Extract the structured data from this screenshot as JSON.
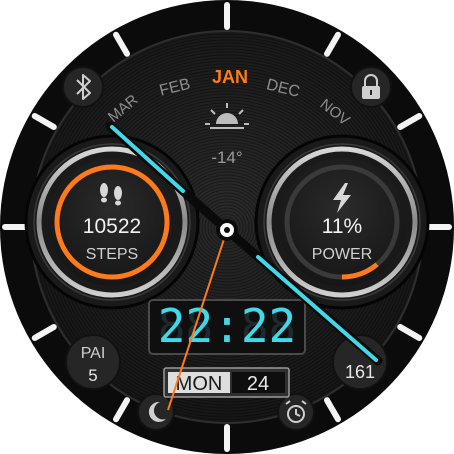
{
  "months": {
    "current": "JAN",
    "prev": [
      "FEB",
      "MAR"
    ],
    "next": [
      "DEC",
      "NOV"
    ]
  },
  "weather": {
    "icon": "sun-icon",
    "temp": "-14°"
  },
  "steps": {
    "value": "10522",
    "label": "STEPS",
    "icon": "footsteps-icon",
    "accent": "#ff7a1a"
  },
  "power": {
    "value": "11%",
    "label": "POWER",
    "icon": "lightning-icon",
    "level": 0.11,
    "accent": "#ff7a1a"
  },
  "time": {
    "display": "22:22",
    "color": "#3fd9ea"
  },
  "date": {
    "weekday": "MON",
    "day": "24"
  },
  "pai": {
    "label": "PAI",
    "value": "5"
  },
  "heart_rate": {
    "value": "161"
  },
  "icons": {
    "top_left": "bluetooth-icon",
    "top_right": "lock-icon",
    "bottom_left": "moon-icon",
    "bottom_right": "alarm-icon"
  },
  "colors": {
    "hand": "#3fd9ea",
    "second_hand": "#ff7a1a",
    "bezel": "#0d0d0d"
  }
}
